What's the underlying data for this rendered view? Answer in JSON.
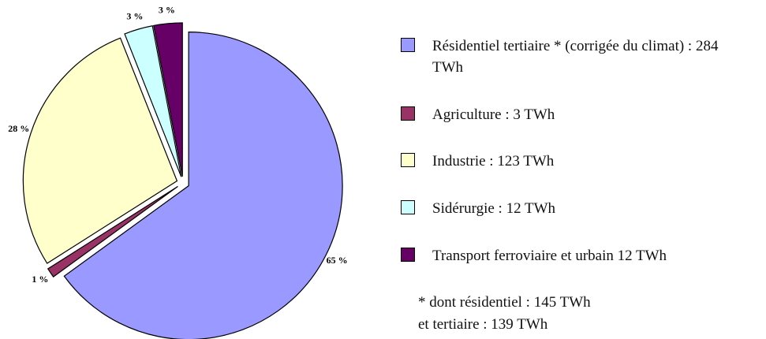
{
  "chart_data": {
    "type": "pie",
    "series": [
      {
        "name": "Résidentiel tertiaire * (corrigée du climat) : 284 TWh",
        "color": "#9999ff"
      },
      {
        "name": "Agriculture : 3 TWh",
        "color": "#993366"
      },
      {
        "name": "Industrie : 123 TWh",
        "color": "#ffffcc"
      },
      {
        "name": "Sidérurgie : 12 TWh",
        "color": "#ccffff"
      },
      {
        "name": "Transport ferroviaire et urbain 12 TWh",
        "color": "#660066"
      }
    ],
    "values": [
      65,
      1,
      28,
      3,
      3
    ],
    "value_labels": [
      "65 %",
      "1 %",
      "28 %",
      "3 %",
      "3 %"
    ],
    "annotation": "* dont résidentiel : 145 TWh\net tertiaire : 139 TWh"
  }
}
